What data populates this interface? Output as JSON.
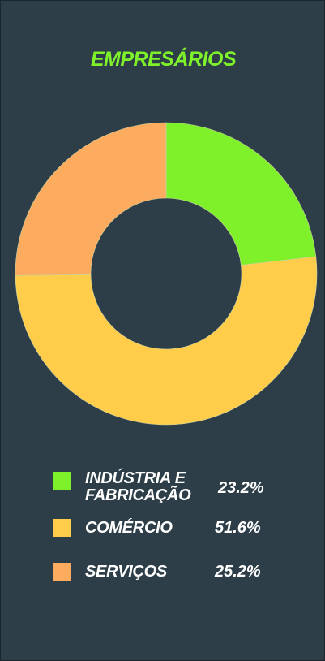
{
  "title": "EMPRESÁRIOS",
  "title_color": "#7ef12a",
  "chart_data": {
    "type": "pie",
    "variant": "donut",
    "title": "EMPRESÁRIOS",
    "categories": [
      "INDÚSTRIA E FABRICAÇÃO",
      "COMÉRCIO",
      "SERVIÇOS"
    ],
    "values": [
      23.2,
      51.6,
      25.2
    ],
    "value_labels": [
      "23.2%",
      "51.6%",
      "25.2%"
    ],
    "colors": [
      "#7ef12a",
      "#ffcd4a",
      "#fdab5f"
    ],
    "legend_placement": "bottom"
  },
  "legend": [
    {
      "label_lines": [
        "INDÚSTRIA E",
        "FABRICAÇÃO"
      ],
      "value": "23.2%",
      "color": "#7ef12a"
    },
    {
      "label_lines": [
        "COMÉRCIO"
      ],
      "value": "51.6%",
      "color": "#ffcd4a"
    },
    {
      "label_lines": [
        "SERVIÇOS"
      ],
      "value": "25.2%",
      "color": "#fdab5f"
    }
  ]
}
